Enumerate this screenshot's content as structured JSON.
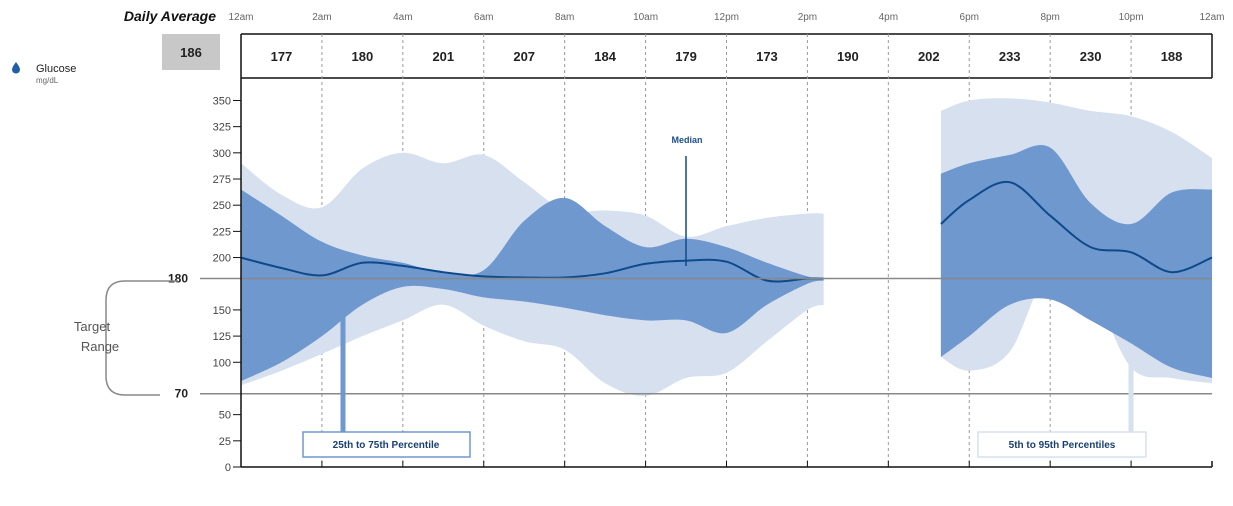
{
  "header": {
    "title": "Daily Average",
    "overall_average": "186",
    "time_labels": [
      "12am",
      "2am",
      "4am",
      "6am",
      "8am",
      "10am",
      "12pm",
      "2pm",
      "4pm",
      "6pm",
      "8pm",
      "10pm",
      "12am"
    ]
  },
  "legend": {
    "metric": "Glucose",
    "unit": "mg/dL"
  },
  "target": {
    "label_line1": "Target",
    "label_line2": "Range",
    "high": "180",
    "low": "70"
  },
  "annotations": {
    "median": "Median",
    "iqr": "25th to 75th Percentile",
    "outer": "5th to 95th Percentiles"
  },
  "colors": {
    "iqr_band": "#6f98cf",
    "outer_band": "#d6e0ef",
    "median_line": "#0e4a8a",
    "avg_box": "#c8c8c8",
    "target_line": "#888888"
  },
  "chart_data": {
    "type": "area",
    "title": "Daily Average",
    "ylabel": "Glucose (mg/dL)",
    "ylim": [
      0,
      360
    ],
    "yticks": [
      0,
      25,
      50,
      70,
      100,
      125,
      150,
      180,
      200,
      225,
      250,
      275,
      300,
      325,
      350
    ],
    "xlim": [
      0,
      24
    ],
    "x_tick_labels": [
      "12am",
      "2am",
      "4am",
      "6am",
      "8am",
      "10am",
      "12pm",
      "2pm",
      "4pm",
      "6pm",
      "8pm",
      "10pm",
      "12am"
    ],
    "two_hour_averages": [
      177,
      180,
      201,
      207,
      184,
      179,
      173,
      190,
      202,
      233,
      230,
      188
    ],
    "reference_lines": [
      180,
      70
    ],
    "segments": [
      {
        "x": [
          0,
          1,
          2,
          3,
          4,
          5,
          6,
          7,
          8,
          9,
          10,
          11,
          12,
          13,
          14,
          14.4
        ],
        "median": [
          200,
          190,
          183,
          195,
          192,
          186,
          182,
          181,
          181,
          185,
          194,
          197,
          196,
          178,
          180,
          180
        ],
        "p25": [
          82,
          100,
          125,
          155,
          172,
          170,
          162,
          158,
          152,
          145,
          140,
          140,
          128,
          155,
          175,
          178
        ],
        "p75": [
          265,
          240,
          215,
          202,
          195,
          185,
          188,
          235,
          257,
          230,
          210,
          218,
          210,
          195,
          182,
          180
        ],
        "p5": [
          78,
          92,
          108,
          125,
          140,
          155,
          135,
          120,
          112,
          80,
          68,
          85,
          90,
          120,
          150,
          155
        ],
        "p95": [
          290,
          260,
          248,
          285,
          300,
          290,
          298,
          272,
          245,
          245,
          240,
          220,
          230,
          238,
          242,
          242
        ]
      },
      {
        "x": [
          17.3,
          18,
          19,
          20,
          21,
          22,
          23,
          24
        ],
        "median": [
          232,
          255,
          272,
          240,
          210,
          205,
          186,
          200
        ],
        "p25": [
          105,
          125,
          155,
          160,
          140,
          118,
          95,
          85
        ],
        "p75": [
          280,
          290,
          298,
          305,
          252,
          232,
          262,
          265
        ],
        "p5": [
          105,
          92,
          110,
          190,
          170,
          95,
          85,
          80
        ],
        "p95": [
          340,
          350,
          352,
          348,
          340,
          335,
          320,
          295
        ]
      }
    ]
  }
}
